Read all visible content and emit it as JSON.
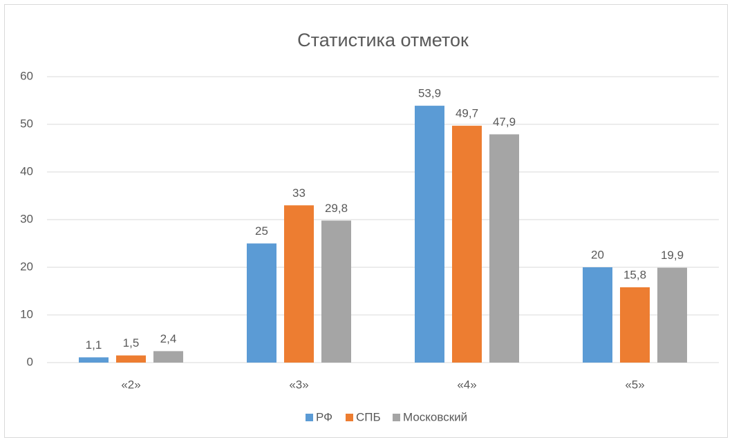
{
  "chart_data": {
    "type": "bar",
    "title": "Статистика отметок",
    "categories": [
      "«2»",
      "«3»",
      "«4»",
      "«5»"
    ],
    "series": [
      {
        "name": "РФ",
        "color": "#5b9bd5",
        "values": [
          1.1,
          25,
          53.9,
          20
        ],
        "value_labels": [
          "1,1",
          "25",
          "53,9",
          "20"
        ]
      },
      {
        "name": "СПБ",
        "color": "#ed7d31",
        "values": [
          1.5,
          33,
          49.7,
          15.8
        ],
        "value_labels": [
          "1,5",
          "33",
          "49,7",
          "15,8"
        ]
      },
      {
        "name": "Московский",
        "color": "#a5a5a5",
        "values": [
          2.4,
          29.8,
          47.9,
          19.9
        ],
        "value_labels": [
          "2,4",
          "29,8",
          "47,9",
          "19,9"
        ]
      }
    ],
    "ylim": [
      0,
      60
    ],
    "yticks": [
      0,
      10,
      20,
      30,
      40,
      50,
      60
    ],
    "grid": true,
    "legend": "bottom"
  }
}
